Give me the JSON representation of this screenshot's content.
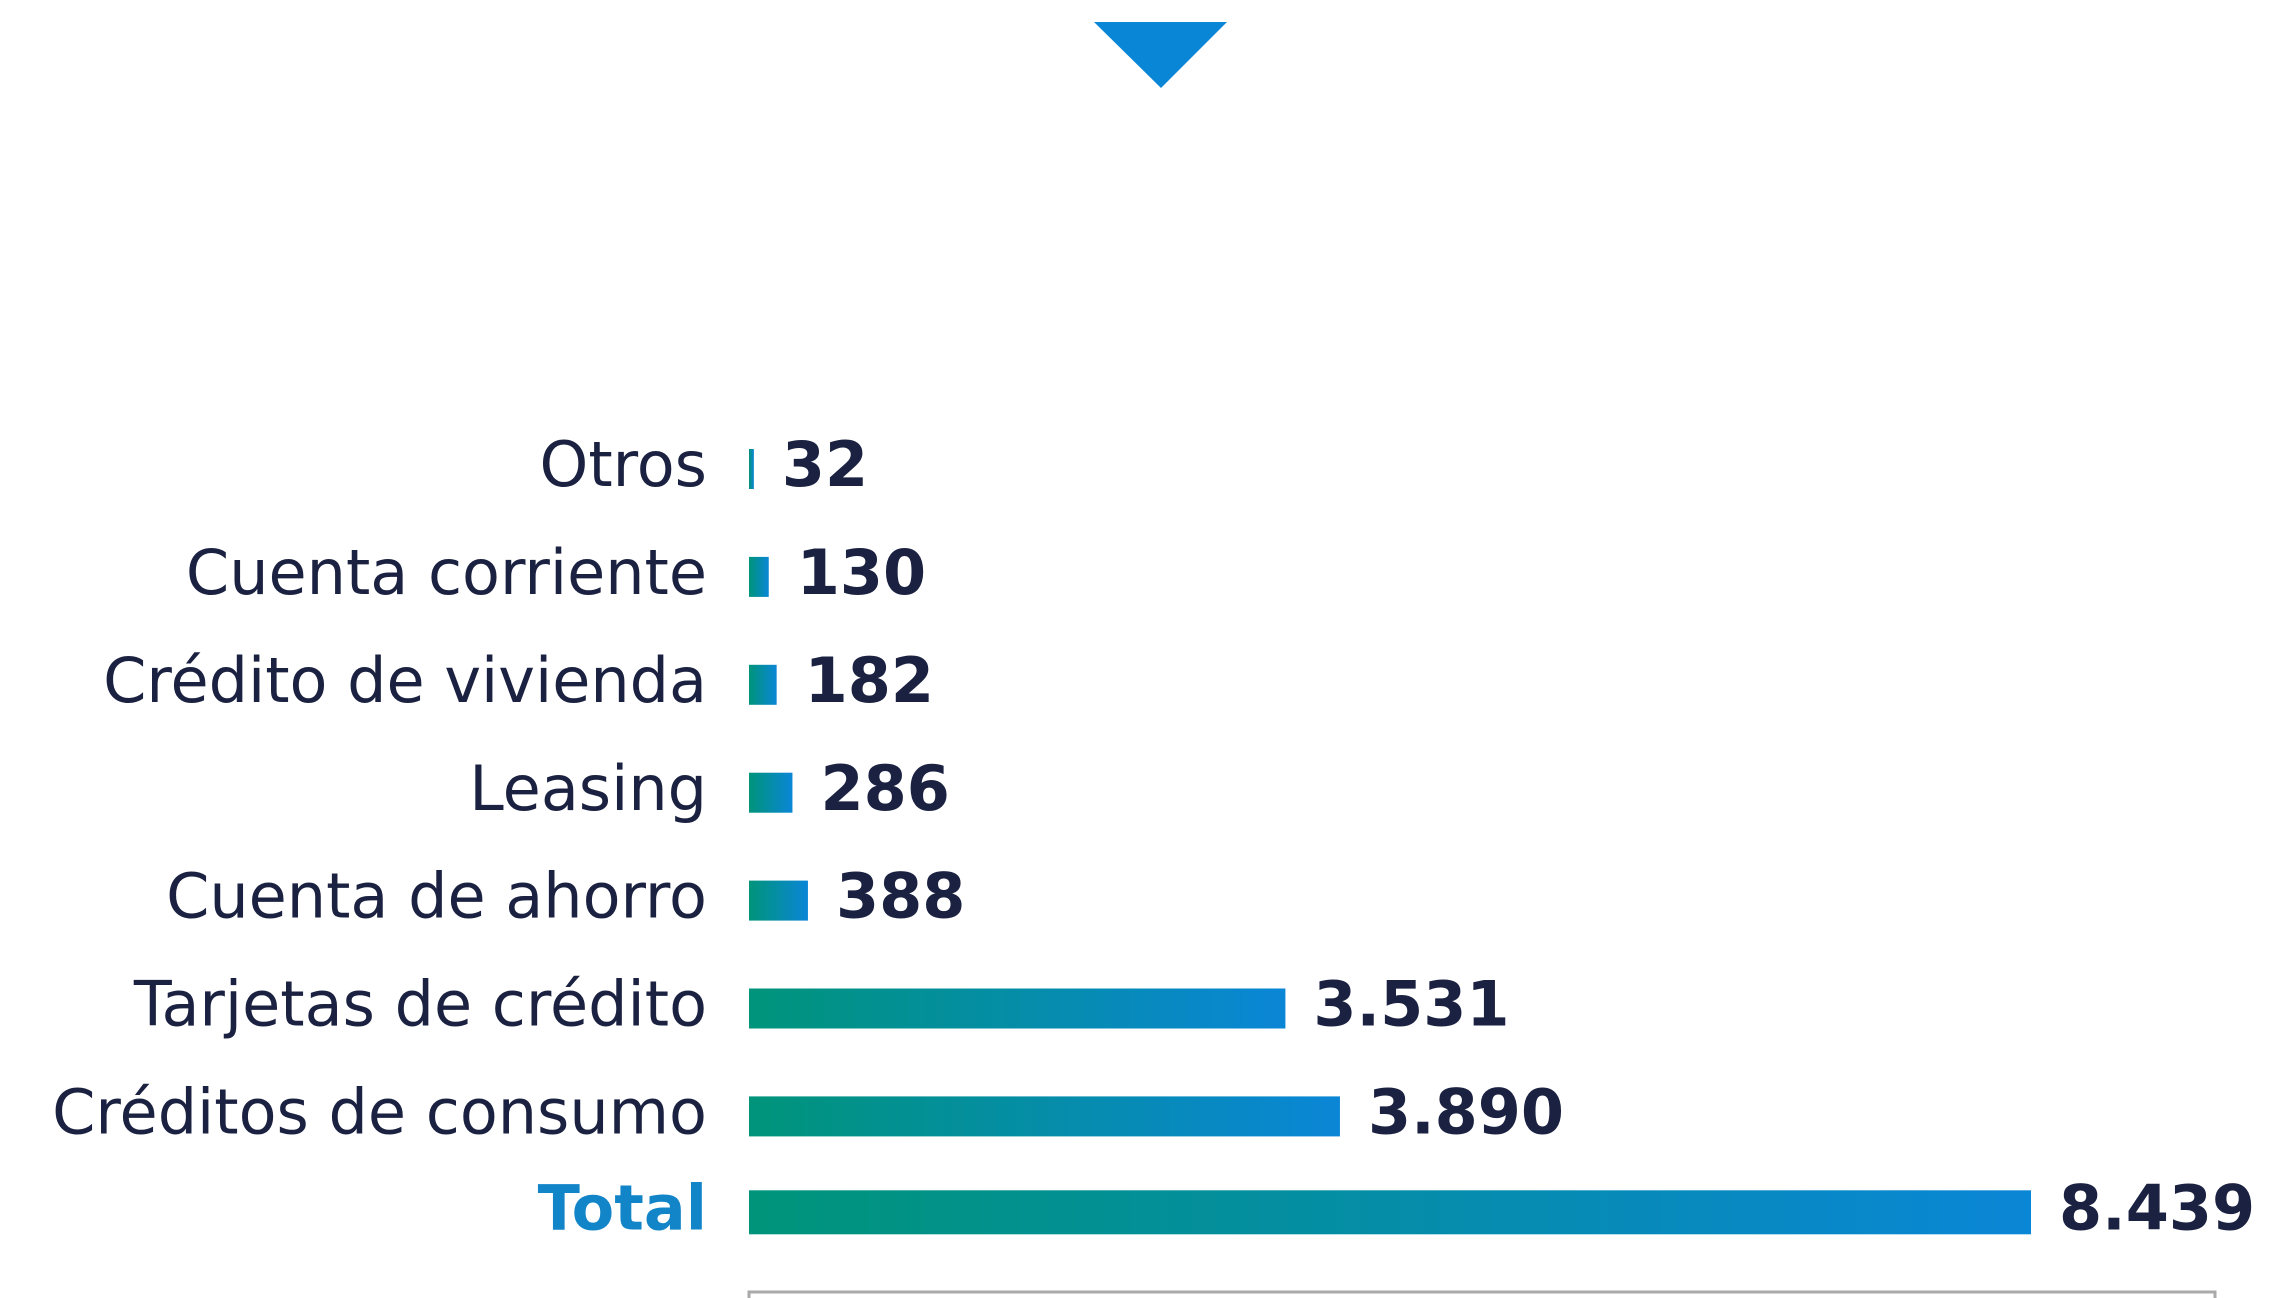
{
  "chart_data": {
    "type": "hbar",
    "categories": [
      "Otros",
      "Cuenta corriente",
      "Crédito de vivienda",
      "Leasing",
      "Cuenta de ahorro",
      "Tarjetas de crédito",
      "Créditos de consumo",
      "Total"
    ],
    "values": [
      32,
      130,
      182,
      286,
      388,
      3531,
      3890,
      8439
    ],
    "value_labels": [
      "32",
      "130",
      "182",
      "286",
      "388",
      "3.531",
      "3.890",
      "8.439"
    ],
    "colors": [
      "#00947a",
      "#0a86d6"
    ]
  }
}
